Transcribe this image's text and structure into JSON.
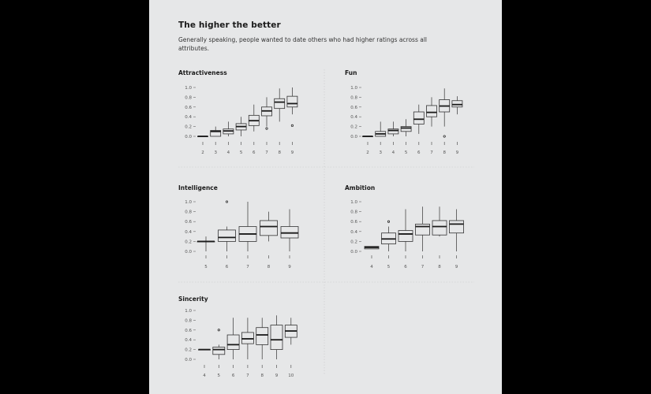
{
  "header": {
    "title": "The higher the better",
    "subtitle": "Generally speaking, people wanted to date others who had higher ratings across all attributes."
  },
  "chart_data": [
    {
      "type": "box",
      "title": "Attractiveness",
      "yticks": [
        "1.0",
        "0.8",
        "0.6",
        "0.4",
        "0.2",
        "0.0"
      ],
      "ylim": [
        0,
        1
      ],
      "categories": [
        "2",
        "3",
        "4",
        "5",
        "6",
        "7",
        "8",
        "9"
      ],
      "boxes": [
        {
          "min": 0.0,
          "q1": 0.0,
          "median": 0.0,
          "q3": 0.0,
          "max": 0.0,
          "outliers": []
        },
        {
          "min": 0.0,
          "q1": 0.0,
          "median": 0.1,
          "q3": 0.12,
          "max": 0.2,
          "outliers": []
        },
        {
          "min": 0.0,
          "q1": 0.05,
          "median": 0.11,
          "q3": 0.15,
          "max": 0.3,
          "outliers": []
        },
        {
          "min": 0.0,
          "q1": 0.13,
          "median": 0.2,
          "q3": 0.26,
          "max": 0.4,
          "outliers": []
        },
        {
          "min": 0.1,
          "q1": 0.22,
          "median": 0.32,
          "q3": 0.43,
          "max": 0.65,
          "outliers": []
        },
        {
          "min": 0.2,
          "q1": 0.42,
          "median": 0.52,
          "q3": 0.6,
          "max": 0.8,
          "outliers": [
            0.16
          ]
        },
        {
          "min": 0.3,
          "q1": 0.57,
          "median": 0.7,
          "q3": 0.77,
          "max": 0.98,
          "outliers": []
        },
        {
          "min": 0.45,
          "q1": 0.6,
          "median": 0.67,
          "q3": 0.82,
          "max": 1.0,
          "outliers": [
            0.22
          ]
        }
      ]
    },
    {
      "type": "box",
      "title": "Fun",
      "yticks": [
        "1.0",
        "0.8",
        "0.6",
        "0.4",
        "0.2",
        "0.0"
      ],
      "ylim": [
        0,
        1
      ],
      "categories": [
        "2",
        "3",
        "4",
        "5",
        "6",
        "7",
        "8",
        "9"
      ],
      "boxes": [
        {
          "min": 0.0,
          "q1": 0.0,
          "median": 0.0,
          "q3": 0.0,
          "max": 0.0,
          "outliers": []
        },
        {
          "min": 0.0,
          "q1": 0.0,
          "median": 0.05,
          "q3": 0.1,
          "max": 0.3,
          "outliers": []
        },
        {
          "min": 0.0,
          "q1": 0.05,
          "median": 0.12,
          "q3": 0.15,
          "max": 0.3,
          "outliers": []
        },
        {
          "min": 0.0,
          "q1": 0.1,
          "median": 0.17,
          "q3": 0.2,
          "max": 0.35,
          "outliers": []
        },
        {
          "min": 0.05,
          "q1": 0.25,
          "median": 0.35,
          "q3": 0.5,
          "max": 0.65,
          "outliers": []
        },
        {
          "min": 0.2,
          "q1": 0.4,
          "median": 0.49,
          "q3": 0.63,
          "max": 0.8,
          "outliers": []
        },
        {
          "min": 0.2,
          "q1": 0.5,
          "median": 0.62,
          "q3": 0.75,
          "max": 0.98,
          "outliers": [
            0.0
          ]
        },
        {
          "min": 0.45,
          "q1": 0.6,
          "median": 0.65,
          "q3": 0.73,
          "max": 0.82,
          "outliers": []
        }
      ]
    },
    {
      "type": "box",
      "title": "Intelligence",
      "yticks": [
        "1.0",
        "0.8",
        "0.6",
        "0.4",
        "0.2",
        "0.0"
      ],
      "ylim": [
        0,
        1
      ],
      "categories": [
        "5",
        "6",
        "7",
        "8",
        "9"
      ],
      "boxes": [
        {
          "min": 0.0,
          "q1": 0.2,
          "median": 0.2,
          "q3": 0.2,
          "max": 0.3,
          "outliers": []
        },
        {
          "min": 0.0,
          "q1": 0.2,
          "median": 0.28,
          "q3": 0.43,
          "max": 0.5,
          "outliers": [
            1.0
          ]
        },
        {
          "min": 0.0,
          "q1": 0.2,
          "median": 0.35,
          "q3": 0.5,
          "max": 1.0,
          "outliers": []
        },
        {
          "min": 0.2,
          "q1": 0.32,
          "median": 0.5,
          "q3": 0.62,
          "max": 0.8,
          "outliers": []
        },
        {
          "min": 0.0,
          "q1": 0.27,
          "median": 0.37,
          "q3": 0.5,
          "max": 0.85,
          "outliers": []
        }
      ]
    },
    {
      "type": "box",
      "title": "Ambition",
      "yticks": [
        "1.0",
        "0.8",
        "0.6",
        "0.4",
        "0.2",
        "0.0"
      ],
      "ylim": [
        0,
        1
      ],
      "categories": [
        "4",
        "5",
        "6",
        "7",
        "8",
        "9"
      ],
      "boxes": [
        {
          "min": 0.05,
          "q1": 0.05,
          "median": 0.08,
          "q3": 0.1,
          "max": 0.1,
          "outliers": []
        },
        {
          "min": 0.0,
          "q1": 0.15,
          "median": 0.25,
          "q3": 0.37,
          "max": 0.5,
          "outliers": [
            0.6
          ]
        },
        {
          "min": 0.0,
          "q1": 0.2,
          "median": 0.35,
          "q3": 0.42,
          "max": 0.85,
          "outliers": []
        },
        {
          "min": 0.0,
          "q1": 0.33,
          "median": 0.5,
          "q3": 0.55,
          "max": 0.9,
          "outliers": []
        },
        {
          "min": 0.3,
          "q1": 0.33,
          "median": 0.5,
          "q3": 0.62,
          "max": 0.9,
          "outliers": []
        },
        {
          "min": 0.0,
          "q1": 0.37,
          "median": 0.55,
          "q3": 0.62,
          "max": 0.85,
          "outliers": []
        }
      ]
    },
    {
      "type": "box",
      "title": "Sincerity",
      "yticks": [
        "1.0",
        "0.8",
        "0.6",
        "0.4",
        "0.2",
        "0.0"
      ],
      "ylim": [
        0,
        1
      ],
      "categories": [
        "4",
        "5",
        "6",
        "7",
        "8",
        "9",
        "10"
      ],
      "boxes": [
        {
          "min": 0.2,
          "q1": 0.2,
          "median": 0.2,
          "q3": 0.2,
          "max": 0.2,
          "outliers": []
        },
        {
          "min": 0.0,
          "q1": 0.1,
          "median": 0.2,
          "q3": 0.25,
          "max": 0.3,
          "outliers": [
            0.6
          ]
        },
        {
          "min": 0.0,
          "q1": 0.2,
          "median": 0.3,
          "q3": 0.5,
          "max": 0.85,
          "outliers": []
        },
        {
          "min": 0.0,
          "q1": 0.32,
          "median": 0.42,
          "q3": 0.55,
          "max": 0.85,
          "outliers": []
        },
        {
          "min": 0.0,
          "q1": 0.3,
          "median": 0.5,
          "q3": 0.65,
          "max": 0.85,
          "outliers": []
        },
        {
          "min": 0.0,
          "q1": 0.2,
          "median": 0.4,
          "q3": 0.7,
          "max": 0.9,
          "outliers": []
        },
        {
          "min": 0.3,
          "q1": 0.45,
          "median": 0.58,
          "q3": 0.7,
          "max": 0.85,
          "outliers": []
        }
      ]
    }
  ]
}
